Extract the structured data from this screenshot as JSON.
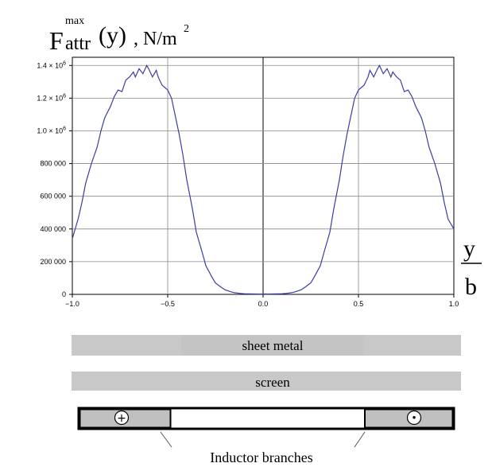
{
  "title": {
    "main": "F",
    "superscript": "max",
    "subscript": "attr",
    "argument": "(y)",
    "units": ", N/m",
    "units_exp": "2"
  },
  "x_axis_label": {
    "numerator": "y",
    "denominator": "b"
  },
  "chart_data": {
    "type": "line",
    "xlim": [
      -1.0,
      1.0
    ],
    "ylim": [
      0,
      1450000
    ],
    "grid": true,
    "x_ticks": [
      -1.0,
      -0.5,
      0.0,
      0.5,
      1.0
    ],
    "x_tick_labels": [
      "−1.0",
      "−0.5",
      "0.0",
      "0.5",
      "1.0"
    ],
    "y_ticks": [
      0,
      200000,
      400000,
      600000,
      800000,
      1000000,
      1200000,
      1400000
    ],
    "y_tick_labels": [
      "0",
      "200 000",
      "400 000",
      "600 000",
      "800 000",
      "1.0 × 10",
      "1.2 × 10",
      "1.4 × 10"
    ],
    "y_tick_label_exp": [
      "",
      "",
      "",
      "",
      "",
      "6",
      "6",
      "6"
    ],
    "series": [
      {
        "color": "#3c3ca4",
        "x": [
          -1.0,
          -0.97,
          -0.95,
          -0.93,
          -0.9,
          -0.87,
          -0.85,
          -0.83,
          -0.8,
          -0.78,
          -0.76,
          -0.74,
          -0.72,
          -0.7,
          -0.68,
          -0.67,
          -0.65,
          -0.63,
          -0.61,
          -0.6,
          -0.58,
          -0.56,
          -0.55,
          -0.53,
          -0.51,
          -0.5,
          -0.48,
          -0.46,
          -0.44,
          -0.42,
          -0.4,
          -0.37,
          -0.35,
          -0.32,
          -0.3,
          -0.27,
          -0.25,
          -0.22,
          -0.2,
          -0.17,
          -0.15,
          -0.12,
          -0.1,
          -0.07,
          -0.05,
          -0.02,
          0.0,
          0.02,
          0.05,
          0.07,
          0.1,
          0.12,
          0.15,
          0.17,
          0.2,
          0.22,
          0.25,
          0.27,
          0.3,
          0.32,
          0.35,
          0.37,
          0.4,
          0.42,
          0.44,
          0.46,
          0.48,
          0.5,
          0.51,
          0.53,
          0.55,
          0.56,
          0.58,
          0.6,
          0.61,
          0.63,
          0.65,
          0.67,
          0.68,
          0.7,
          0.72,
          0.74,
          0.76,
          0.78,
          0.8,
          0.83,
          0.85,
          0.87,
          0.9,
          0.93,
          0.95,
          0.97,
          1.0
        ],
        "y": [
          340000,
          460000,
          560000,
          680000,
          800000,
          900000,
          1000000,
          1080000,
          1150000,
          1210000,
          1250000,
          1240000,
          1310000,
          1330000,
          1360000,
          1330000,
          1380000,
          1350000,
          1400000,
          1380000,
          1330000,
          1370000,
          1330000,
          1280000,
          1260000,
          1250000,
          1200000,
          1090000,
          980000,
          850000,
          700000,
          520000,
          380000,
          260000,
          175000,
          110000,
          70000,
          44000,
          28000,
          16000,
          10000,
          6000,
          4000,
          3000,
          2500,
          2000,
          2000,
          2000,
          2500,
          3000,
          4000,
          6000,
          10000,
          16000,
          28000,
          44000,
          70000,
          110000,
          175000,
          260000,
          380000,
          520000,
          700000,
          850000,
          980000,
          1090000,
          1200000,
          1250000,
          1260000,
          1280000,
          1330000,
          1370000,
          1330000,
          1380000,
          1400000,
          1350000,
          1380000,
          1330000,
          1360000,
          1330000,
          1310000,
          1240000,
          1250000,
          1210000,
          1150000,
          1080000,
          1000000,
          900000,
          800000,
          680000,
          560000,
          460000,
          400000
        ]
      }
    ]
  },
  "layers": {
    "sheet_metal_label": "sheet metal",
    "screen_label": "screen",
    "inductor_label": "Inductor branches",
    "left_symbol": "+",
    "right_symbol": "•"
  },
  "colors": {
    "line": "#3c3ca4",
    "grid": "#888888",
    "layer_fill": "#c8c8c8",
    "inductor_fill": "#c0c0c0"
  }
}
